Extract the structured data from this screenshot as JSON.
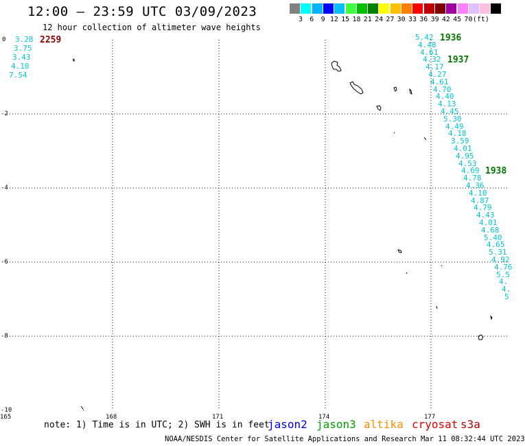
{
  "header": {
    "title": "12:00 – 23:59 UTC 03/09/2023",
    "subtitle": "12 hour collection of altimeter wave heights"
  },
  "scale": {
    "colors": [
      "#808080",
      "#00ffff",
      "#00b4ff",
      "#0000ff",
      "#00c0ff",
      "#40ff40",
      "#00c000",
      "#008000",
      "#ffff00",
      "#ffc000",
      "#ff8000",
      "#ff0000",
      "#c00000",
      "#800000",
      "#a000a0",
      "#ff80ff",
      "#e0c0ff",
      "#ffc0e0",
      "#000000"
    ],
    "labels": [
      "3",
      "6",
      "9",
      "12",
      "15",
      "18",
      "21",
      "24",
      "27",
      "30",
      "33",
      "36",
      "39",
      "42",
      "45",
      "70",
      "(ft)"
    ]
  },
  "map": {
    "lon_labels": [
      "165",
      "168",
      "171",
      "174",
      "177"
    ],
    "lat_labels": [
      "0",
      "-2",
      "-4",
      "-6",
      "-8",
      "-10"
    ]
  },
  "tracks": [
    {
      "time_label": "2259",
      "color": "#8b0000",
      "values": [
        "3.28",
        "3.75",
        "3.43",
        "4.10",
        "7.54"
      ]
    },
    {
      "time_label": "1936",
      "color": "#007800",
      "values": [
        "5.42",
        "4.48",
        "4.61",
        "4.32",
        "4.17",
        "4.27",
        "4.61",
        "4.70",
        "4.40",
        "4.13",
        "4.45",
        "5.30",
        "4.49",
        "4.18",
        "3.59",
        "4.01",
        "4.95",
        "4.53",
        "4.69",
        "4.78",
        "4.36",
        "4.10",
        "4.87",
        "4.79",
        "4.43",
        "4.01",
        "4.68",
        "5.40",
        "4.65",
        "5.31",
        "4.92",
        "4.76",
        "5.5",
        "4.",
        "4.",
        "5"
      ]
    },
    {
      "time_label": "1937",
      "color": "#007800"
    },
    {
      "time_label": "1938",
      "color": "#007800"
    }
  ],
  "footer": {
    "note": "note: 1) Time is in UTC; 2) SWH is in feet",
    "missions": [
      {
        "name": "jason2",
        "color": "#0000dc"
      },
      {
        "name": "jason3",
        "color": "#00a000"
      },
      {
        "name": "altika",
        "color": "#ff8c00"
      },
      {
        "name": "cryosat",
        "color": "#dc0000"
      },
      {
        "name": "s3a",
        "color": "#b40000"
      }
    ],
    "credit": "NOAA/NESDIS Center for Satellite Applications and Research   Mar 11 08:32:44 UTC 2023"
  }
}
